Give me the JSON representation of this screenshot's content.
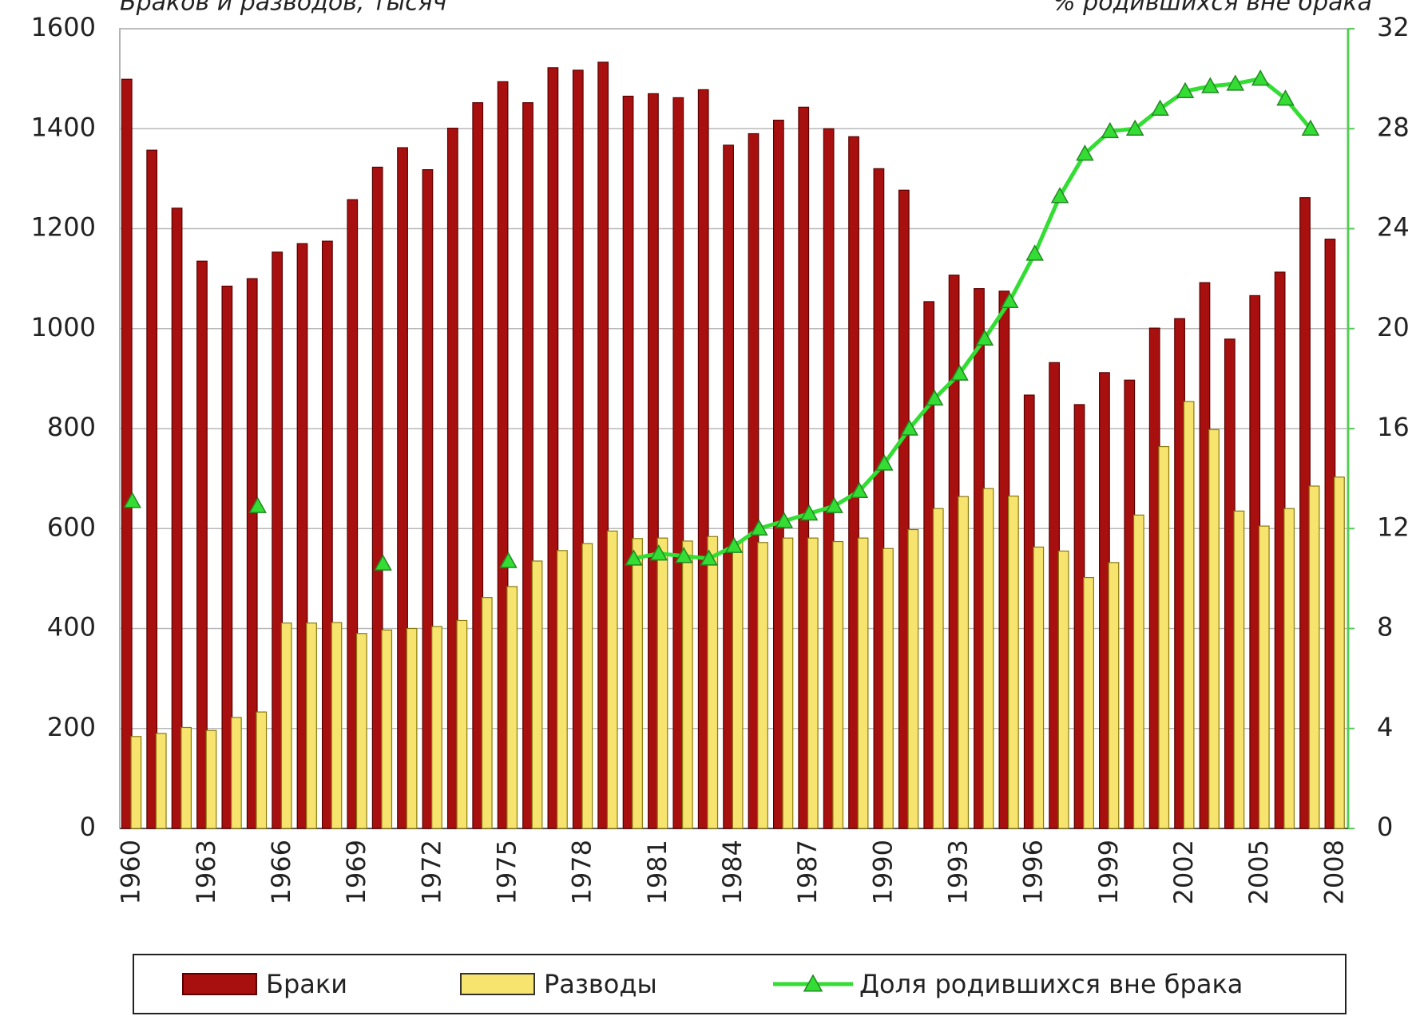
{
  "chart_data": {
    "type": "bar",
    "ylabel": "Браков и разводов, тысяч",
    "y2label": "% родившихся вне брака",
    "categories": [
      "1960",
      null,
      null,
      "1963",
      null,
      null,
      "1966",
      null,
      null,
      "1969",
      null,
      null,
      "1972",
      null,
      null,
      "1975",
      null,
      null,
      "1978",
      null,
      null,
      "1981",
      null,
      null,
      "1984",
      null,
      null,
      "1987",
      null,
      null,
      "1990",
      null,
      null,
      "1993",
      null,
      null,
      "1996",
      null,
      null,
      "1999",
      null,
      null,
      "2002",
      null,
      null,
      "2005",
      null,
      null,
      "2008"
    ],
    "series": [
      {
        "name": "Браки",
        "color": "#a81010",
        "values": [
          1499,
          1357,
          1241,
          1135,
          1085,
          1100,
          1153,
          1170,
          1175,
          1258,
          1323,
          1362,
          1318,
          1401,
          1452,
          1494,
          1452,
          1522,
          1517,
          1533,
          1465,
          1470,
          1462,
          1478,
          1367,
          1390,
          1417,
          1443,
          1400,
          1384,
          1320,
          1277,
          1054,
          1107,
          1080,
          1075,
          867,
          932,
          848,
          912,
          897,
          1001,
          1020,
          1092,
          979,
          1066,
          1113,
          1262,
          1179
        ]
      },
      {
        "name": "Разводы",
        "color": "#f6e46e",
        "values": [
          184,
          190,
          202,
          196,
          222,
          233,
          411,
          411,
          412,
          390,
          397,
          400,
          404,
          416,
          462,
          484,
          535,
          556,
          570,
          595,
          580,
          581,
          575,
          584,
          574,
          572,
          581,
          581,
          574,
          581,
          560,
          598,
          640,
          664,
          680,
          665,
          563,
          555,
          502,
          532,
          627,
          764,
          854,
          798,
          635,
          605,
          640,
          685,
          703
        ]
      },
      {
        "name": "Доля родившихся вне брака",
        "type": "line",
        "axis": "y2",
        "color": "#33dd33",
        "values": [
          13.1,
          null,
          null,
          null,
          null,
          12.9,
          null,
          null,
          null,
          null,
          10.6,
          null,
          null,
          null,
          null,
          10.7,
          null,
          null,
          null,
          null,
          10.8,
          11.0,
          10.9,
          10.8,
          11.3,
          12.0,
          12.3,
          12.6,
          12.9,
          13.5,
          14.6,
          16.0,
          17.2,
          18.2,
          19.6,
          21.1,
          23.0,
          25.3,
          27.0,
          27.9,
          28.0,
          28.8,
          29.5,
          29.7,
          29.8,
          30.0,
          29.2,
          28.0,
          null
        ]
      }
    ],
    "ylim": [
      0,
      1600
    ],
    "yticks": [
      0,
      200,
      400,
      600,
      800,
      1000,
      1200,
      1400,
      1600
    ],
    "y2lim": [
      0,
      32
    ],
    "y2ticks": [
      0,
      4,
      8,
      12,
      16,
      20,
      24,
      28,
      32
    ],
    "grid": true,
    "legend": "bottom"
  }
}
